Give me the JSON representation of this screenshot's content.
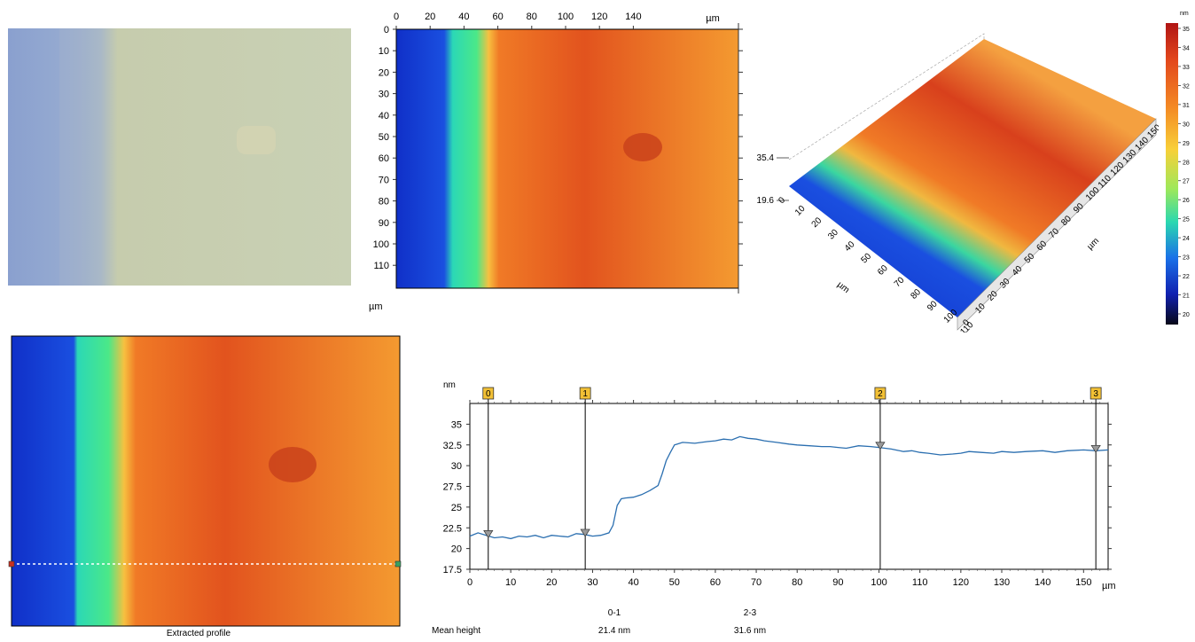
{
  "colors": {
    "deep_blue": "#1030c8",
    "teal": "#22d6a0",
    "orange": "#f47a28",
    "red_orange": "#d8401c",
    "profile_line": "#2b6fb0",
    "marker_fill": "#f2c035"
  },
  "optical_image": {
    "description_colors": [
      "#8ca3cf",
      "#c8cfae"
    ]
  },
  "heightmap_2d": {
    "x_ticks": [
      "0",
      "20",
      "40",
      "60",
      "80",
      "100",
      "120",
      "140"
    ],
    "x_unit": "µm",
    "y_ticks": [
      "0",
      "10",
      "20",
      "30",
      "40",
      "50",
      "60",
      "70",
      "80",
      "90",
      "100",
      "110"
    ],
    "y_unit": "µm"
  },
  "view_3d": {
    "z_max": "35.4",
    "z_min": "19.6",
    "x_ticks": [
      "0",
      "10",
      "20",
      "30",
      "40",
      "50",
      "60",
      "70",
      "80",
      "90",
      "100",
      "110"
    ],
    "x_unit": "µm",
    "y_ticks": [
      "0",
      "10",
      "20",
      "30",
      "40",
      "50",
      "60",
      "70",
      "80",
      "90",
      "100",
      "110",
      "120",
      "130",
      "140",
      "150"
    ],
    "y_unit": "µm"
  },
  "colorbar": {
    "unit": "nm",
    "ticks": [
      "35",
      "34",
      "33",
      "32",
      "31",
      "30",
      "29",
      "28",
      "27",
      "26",
      "25",
      "24",
      "23",
      "22",
      "21",
      "20"
    ]
  },
  "extracted_profile_map": {
    "caption": "Extracted profile"
  },
  "chart_data": {
    "type": "line",
    "ylabel": "nm",
    "xunit": "µm",
    "xlim": [
      0,
      156
    ],
    "ylim": [
      17.5,
      37.5
    ],
    "x_ticks": [
      "0",
      "10",
      "20",
      "30",
      "40",
      "50",
      "60",
      "70",
      "80",
      "90",
      "100",
      "110",
      "120",
      "130",
      "140",
      "150"
    ],
    "y_ticks": [
      "17.5",
      "20",
      "22.5",
      "25",
      "27.5",
      "30",
      "32.5",
      "35"
    ],
    "series": [
      {
        "x": [
          0,
          2,
          4,
          6,
          8,
          10,
          12,
          14,
          16,
          18,
          20,
          22,
          24,
          26,
          28,
          30,
          32,
          34,
          35,
          36,
          37,
          38,
          40,
          42,
          44,
          46,
          47,
          48,
          49,
          50,
          52,
          55,
          58,
          60,
          62,
          64,
          66,
          68,
          70,
          72,
          75,
          78,
          80,
          83,
          86,
          88,
          90,
          92,
          95,
          98,
          100,
          103,
          106,
          108,
          110,
          112,
          115,
          118,
          120,
          122,
          125,
          128,
          130,
          133,
          136,
          140,
          143,
          146,
          150,
          153,
          156
        ],
        "y": [
          21.5,
          21.9,
          21.6,
          21.3,
          21.4,
          21.2,
          21.5,
          21.4,
          21.6,
          21.3,
          21.6,
          21.5,
          21.4,
          21.8,
          21.7,
          21.5,
          21.6,
          21.9,
          22.8,
          25.2,
          26.0,
          26.1,
          26.2,
          26.5,
          27.0,
          27.6,
          29.0,
          30.6,
          31.6,
          32.5,
          32.8,
          32.7,
          32.9,
          33.0,
          33.2,
          33.1,
          33.5,
          33.3,
          33.2,
          33.0,
          32.8,
          32.6,
          32.5,
          32.4,
          32.3,
          32.3,
          32.2,
          32.1,
          32.4,
          32.3,
          32.2,
          32.0,
          31.7,
          31.8,
          31.6,
          31.5,
          31.3,
          31.4,
          31.5,
          31.7,
          31.6,
          31.5,
          31.7,
          31.6,
          31.7,
          31.8,
          31.6,
          31.8,
          31.9,
          31.8,
          31.9
        ]
      }
    ],
    "markers": [
      {
        "label": "0",
        "x": 4.5
      },
      {
        "label": "1",
        "x": 28.2
      },
      {
        "label": "2",
        "x": 100.3
      },
      {
        "label": "3",
        "x": 153.0
      }
    ]
  },
  "measurements": {
    "row_label": "Mean height",
    "col1_header": "0-1",
    "col1_value": "21.4 nm",
    "col2_header": "2-3",
    "col2_value": "31.6 nm"
  }
}
